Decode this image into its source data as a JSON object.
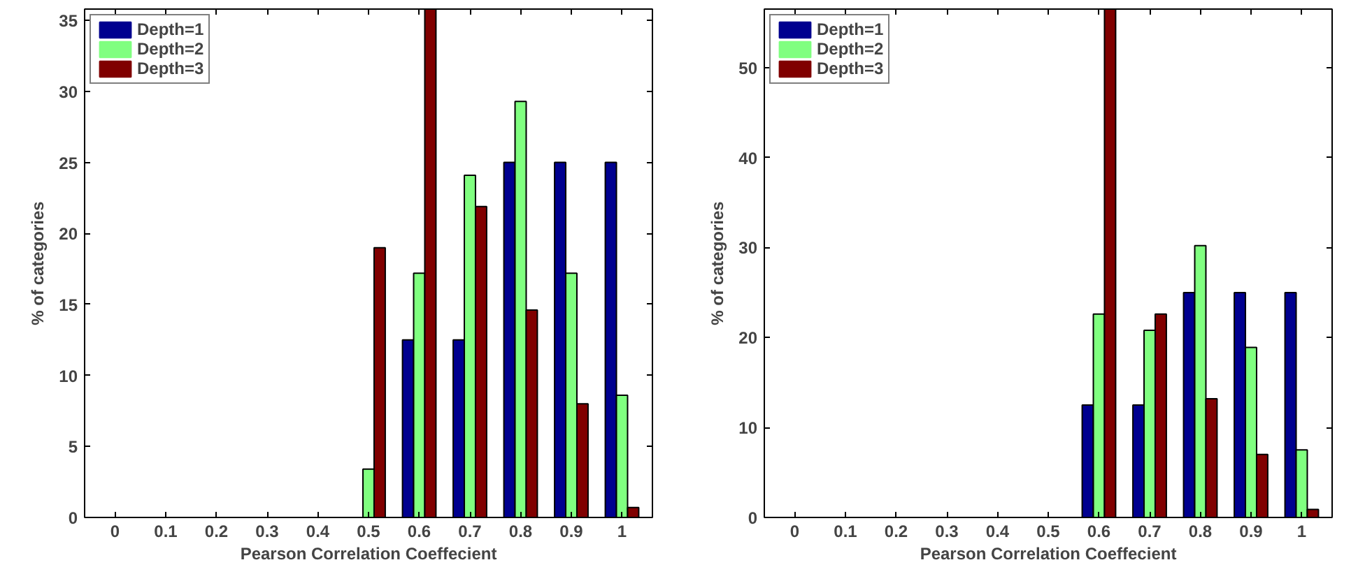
{
  "chart_data": [
    {
      "type": "bar",
      "xlabel": "Pearson Correlation Coeffecient",
      "ylabel": "% of categories",
      "categories": [
        "0",
        "0.1",
        "0.2",
        "0.3",
        "0.4",
        "0.5",
        "0.6",
        "0.7",
        "0.8",
        "0.9",
        "1"
      ],
      "ylim": [
        0,
        35.8
      ],
      "yticks": [
        0,
        5,
        10,
        15,
        20,
        25,
        30,
        35
      ],
      "grid": false,
      "legend": "top left",
      "series": [
        {
          "name": "Depth=1",
          "color": "#00008f",
          "values": [
            0,
            0,
            0,
            0,
            0,
            0,
            12.5,
            12.5,
            25,
            25,
            25
          ]
        },
        {
          "name": "Depth=2",
          "color": "#80ff80",
          "values": [
            0,
            0,
            0,
            0,
            0,
            3.4,
            17.2,
            24.1,
            29.3,
            17.2,
            8.6
          ]
        },
        {
          "name": "Depth=3",
          "color": "#800000",
          "values": [
            0,
            0,
            0,
            0,
            0,
            19,
            35.8,
            21.9,
            14.6,
            8,
            0.7
          ]
        }
      ]
    },
    {
      "type": "bar",
      "xlabel": "Pearson Correlation Coeffecient",
      "ylabel": "% of categories",
      "categories": [
        "0",
        "0.1",
        "0.2",
        "0.3",
        "0.4",
        "0.5",
        "0.6",
        "0.7",
        "0.8",
        "0.9",
        "1"
      ],
      "ylim": [
        0,
        56.5
      ],
      "yticks": [
        0,
        10,
        20,
        30,
        40,
        50
      ],
      "grid": false,
      "legend": "top left",
      "series": [
        {
          "name": "Depth=1",
          "color": "#00008f",
          "values": [
            0,
            0,
            0,
            0,
            0,
            0,
            12.5,
            12.5,
            25,
            25,
            25
          ]
        },
        {
          "name": "Depth=2",
          "color": "#80ff80",
          "values": [
            0,
            0,
            0,
            0,
            0,
            0,
            22.6,
            20.8,
            30.2,
            18.9,
            7.5
          ]
        },
        {
          "name": "Depth=3",
          "color": "#800000",
          "values": [
            0,
            0,
            0,
            0,
            0,
            0,
            56.5,
            22.6,
            13.2,
            7,
            0.9
          ]
        }
      ]
    }
  ]
}
